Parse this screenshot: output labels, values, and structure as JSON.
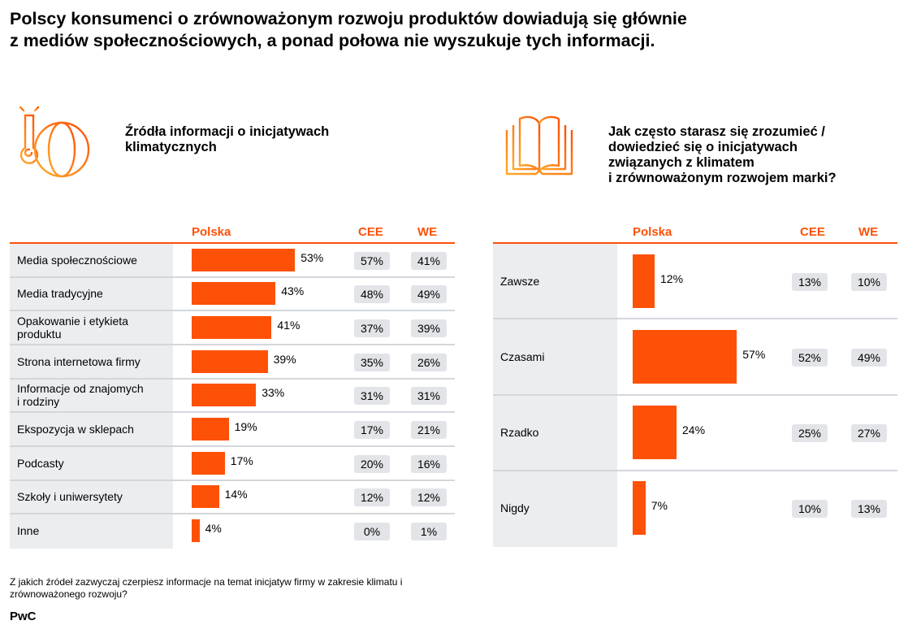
{
  "title": {
    "line1": "Polscy konsumenci o zrównoważonym rozwoju produktów dowiadują się głównie",
    "line2": "z mediów społecznościowych, a ponad połowa nie wyszukuje tych informacji."
  },
  "colors": {
    "accent": "#fd5108",
    "label_bg": "#ebedef",
    "pill_bg": "#e2e4e8",
    "separator": "#d3d7db"
  },
  "left_panel": {
    "icon": "thermometer-globe-icon",
    "heading_line1": "Źródła informacji o inicjatywach",
    "heading_line2": "klimatycznych",
    "columns": [
      "Polska",
      "CEE",
      "WE"
    ]
  },
  "right_panel": {
    "icon": "open-book-icon",
    "heading_lines": [
      "Jak często starasz się zrozumieć /",
      "dowiedzieć się o inicjatywach",
      "związanych z klimatem",
      "i zrównoważonym rozwojem marki?"
    ],
    "columns": [
      "Polska",
      "CEE",
      "WE"
    ]
  },
  "chart_data": [
    {
      "type": "bar",
      "orientation": "horizontal",
      "title": "Źródła informacji o inicjatywach klimatycznych",
      "categories": [
        [
          "Media społecznościowe"
        ],
        [
          "Media tradycyjne"
        ],
        [
          "Opakowanie i etykieta",
          "produktu"
        ],
        [
          "Strona internetowa firmy"
        ],
        [
          "Informacje od znajomych",
          "i rodziny"
        ],
        [
          "Ekspozycja w sklepach"
        ],
        [
          "Podcasty"
        ],
        [
          "Szkoły i uniwersytety"
        ],
        [
          "Inne"
        ]
      ],
      "series": [
        {
          "name": "Polska",
          "values": [
            53,
            43,
            41,
            39,
            33,
            19,
            17,
            14,
            4
          ],
          "labels": [
            "53%",
            "43%",
            "41%",
            "39%",
            "33%",
            "19%",
            "17%",
            "14%",
            "4%"
          ],
          "display": "bar"
        },
        {
          "name": "CEE",
          "values": [
            57,
            48,
            37,
            35,
            31,
            17,
            20,
            12,
            0
          ],
          "labels": [
            "57%",
            "48%",
            "37%",
            "35%",
            "31%",
            "17%",
            "20%",
            "12%",
            "0%"
          ],
          "display": "pill"
        },
        {
          "name": "WE",
          "values": [
            41,
            49,
            39,
            26,
            31,
            21,
            16,
            12,
            1
          ],
          "labels": [
            "41%",
            "49%",
            "39%",
            "26%",
            "31%",
            "21%",
            "16%",
            "12%",
            "1%"
          ],
          "display": "pill"
        }
      ],
      "unit": "%",
      "xlim": [
        0,
        100
      ]
    },
    {
      "type": "bar",
      "orientation": "horizontal",
      "title": "Jak często starasz się zrozumieć / dowiedzieć się o inicjatywach związanych z klimatem i zrównoważonym rozwojem marki?",
      "categories": [
        [
          "Zawsze"
        ],
        [
          "Czasami"
        ],
        [
          "Rzadko"
        ],
        [
          "Nigdy"
        ]
      ],
      "series": [
        {
          "name": "Polska",
          "values": [
            12,
            57,
            24,
            7
          ],
          "labels": [
            "12%",
            "57%",
            "24%",
            "7%"
          ],
          "display": "bar"
        },
        {
          "name": "CEE",
          "values": [
            13,
            52,
            25,
            10
          ],
          "labels": [
            "13%",
            "52%",
            "25%",
            "10%"
          ],
          "display": "pill"
        },
        {
          "name": "WE",
          "values": [
            10,
            49,
            27,
            13
          ],
          "labels": [
            "10%",
            "49%",
            "27%",
            "13%"
          ],
          "display": "pill"
        }
      ],
      "unit": "%",
      "xlim": [
        0,
        100
      ]
    }
  ],
  "footnote": "Z jakich źródeł zazwyczaj czerpiesz informacje na temat inicjatyw firmy w zakresie klimatu i zrównoważonego rozwoju?",
  "brand": "PwC"
}
